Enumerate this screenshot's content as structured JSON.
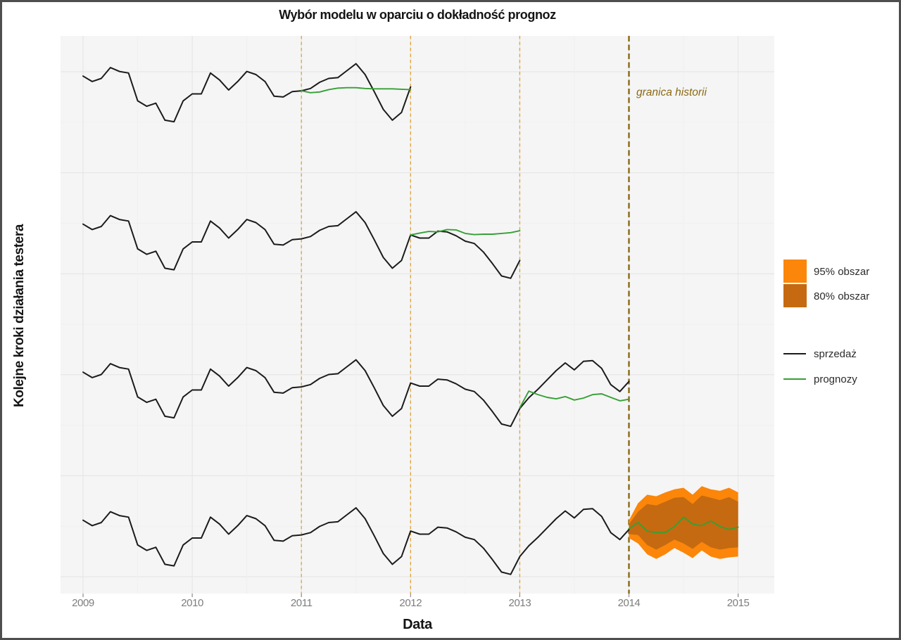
{
  "chart_data": {
    "type": "line",
    "title": "Wybór modelu w oparciu o dokładność prognoz",
    "xlabel": "Data",
    "ylabel": "Kolejne kroki działania testera",
    "x_ticks": [
      "2009",
      "2010",
      "2011",
      "2012",
      "2013",
      "2014",
      "2015"
    ],
    "x_range": [
      2008.79,
      2015.33
    ],
    "y_axis_note": "arbitrary units, no y tick labels; four stacked test steps",
    "grid": "on",
    "legend_position": "right",
    "annotation": {
      "text": "granica historii",
      "x": 2014.08,
      "row": 1
    },
    "history_boundary_x": 2014,
    "cv_boundaries_x": [
      2011,
      2012,
      2013
    ],
    "sales_start": 2009.0,
    "sales_step_months": 1,
    "sales_monthly": [
      73,
      66,
      70,
      84,
      79,
      77,
      41,
      34,
      38,
      16,
      14,
      41,
      50,
      50,
      77,
      68,
      55,
      66,
      79,
      75,
      66,
      47,
      46,
      53,
      54,
      57,
      65,
      70,
      71,
      80,
      89,
      75,
      53,
      30,
      16,
      26,
      59,
      55,
      55,
      64,
      63,
      58,
      51,
      48,
      37,
      22,
      6,
      3,
      26,
      40,
      51,
      63,
      75,
      85,
      76,
      87,
      88,
      78,
      57,
      48,
      61
    ],
    "rows": [
      {
        "step": 1,
        "sales_end": 2012,
        "forecast_start": 2011,
        "forecast": [
          54,
          51.5,
          52.5,
          55.5,
          57.5,
          58,
          58,
          57,
          56.5,
          56.5,
          56.5,
          56,
          55.5
        ]
      },
      {
        "step": 2,
        "sales_end": 2013,
        "forecast_start": 2012,
        "forecast": [
          59,
          61.5,
          63.5,
          63,
          66,
          65.5,
          61,
          59.5,
          60,
          60,
          61,
          62,
          64.5
        ]
      },
      {
        "step": 3,
        "sales_end": 2014,
        "forecast_start": 2013,
        "forecast": [
          27,
          48.5,
          44,
          40.5,
          38.5,
          41.5,
          37,
          39.5,
          44,
          45,
          40.5,
          36,
          38
        ]
      },
      {
        "step": 4,
        "sales_end": 2014,
        "forecast_start": 2014,
        "forecast": [
          62,
          70,
          59,
          57,
          57,
          65,
          77,
          68,
          66,
          72,
          65,
          61,
          64
        ],
        "band95": {
          "upper": [
            73,
            95,
            106,
            104,
            109,
            113,
            115,
            106,
            117,
            113,
            111,
            115,
            109
          ],
          "lower": [
            50,
            43,
            29,
            23,
            29,
            37,
            31,
            24,
            34,
            26,
            23,
            25,
            26
          ]
        },
        "band80": {
          "upper": [
            68,
            84,
            94,
            92,
            97,
            102,
            103,
            94,
            105,
            102,
            99,
            103,
            97
          ],
          "lower": [
            55,
            54,
            41,
            35,
            41,
            48,
            43,
            36,
            45,
            38,
            35,
            37,
            38
          ]
        }
      }
    ],
    "legend": {
      "items": [
        {
          "type": "area",
          "color": "#FB860A",
          "label": "95% obszar"
        },
        {
          "type": "area",
          "color": "#C56A11",
          "label": "80% obszar"
        },
        {
          "type": "line",
          "color": "#1B1B1B",
          "label": "sprzedaż"
        },
        {
          "type": "line",
          "color": "#35A035",
          "label": "prognozy"
        }
      ]
    },
    "colors": {
      "panel_bg": "#F5F5F5",
      "grid_major": "#E4E4E4",
      "grid_minor": "#F0F0F0",
      "sales_line": "#1B1B1B",
      "forecast_line": "#35A035",
      "cv_line": "#E2A63D",
      "history_line": "#8B6914",
      "band95": "#FB860A",
      "band80": "#C56A11",
      "annotation": "#8B6914",
      "tick_label": "#7D7D7D"
    }
  }
}
